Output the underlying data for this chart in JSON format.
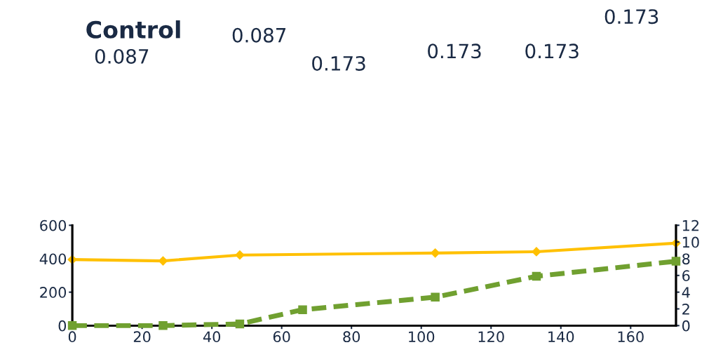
{
  "chart_data": {
    "type": "line",
    "title": "Control",
    "annotations": [
      "0.087",
      "0.087",
      "0.173",
      "0.173",
      "0.173",
      "0.173"
    ],
    "xlim": [
      0,
      173
    ],
    "xticks": [
      0,
      20,
      40,
      60,
      80,
      100,
      120,
      140,
      160
    ],
    "ylim": [
      0,
      600
    ],
    "yticks": [
      0,
      200,
      400,
      600
    ],
    "y2lim": [
      0,
      12
    ],
    "y2ticks": [
      0,
      2,
      4,
      6,
      8,
      10,
      12
    ],
    "series": [
      {
        "color": "#ffc000",
        "x": [
          0,
          26,
          48,
          104,
          133,
          173
        ],
        "values": [
          395,
          387,
          422,
          434,
          442,
          493
        ],
        "marker": "diamond",
        "line_style": "solid"
      },
      {
        "color": "#70a030",
        "axis": "y2",
        "x": [
          0,
          26,
          48,
          66,
          104,
          133,
          173
        ],
        "values": [
          0,
          0,
          0.2,
          1.9,
          3.4,
          5.9,
          7.7
        ],
        "marker": "square",
        "line_style": "dashed"
      }
    ]
  }
}
